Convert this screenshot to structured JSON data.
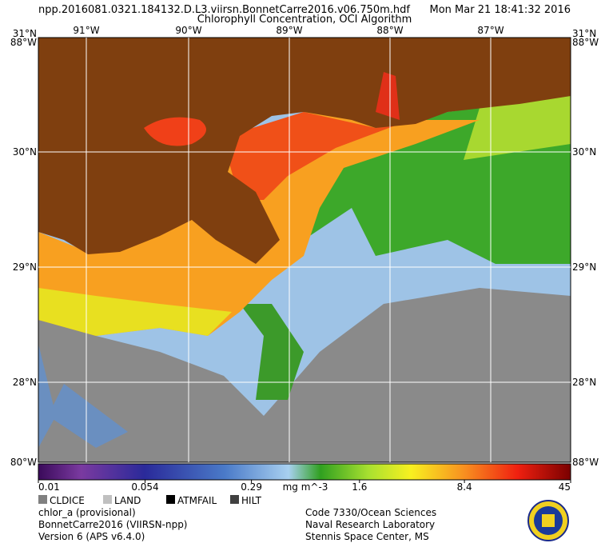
{
  "header": {
    "filename": "npp.2016081.0321.184132.D.L3.viirsn.BonnetCarre2016.v06.750m.hdf",
    "datetime": "Mon Mar 21 18:41:32 2016",
    "title": "Chlorophyll Concentration, OCI Algorithm"
  },
  "map": {
    "top_labels": [
      "91°W",
      "90°W",
      "89°W",
      "88°W",
      "87°W"
    ],
    "left_labels": [
      "30°N",
      "29°N",
      "28°N"
    ],
    "right_labels": [
      "30°N",
      "29°N",
      "28°N"
    ],
    "corner_top_left": [
      "31°N",
      "88°W"
    ],
    "corner_top_right": [
      "31°N",
      "88°W"
    ],
    "corner_bottom_left": "80°W",
    "corner_bottom_right": "88°W"
  },
  "colorbar": {
    "lim": [
      0.01,
      45
    ],
    "ticks": [
      0.01,
      0.054,
      0.29,
      1.6,
      8.4,
      45
    ],
    "unit": "mg m^-3",
    "log": true
  },
  "legend": [
    "CLDICE",
    "LAND",
    "ATMFAIL",
    "HILT"
  ],
  "footer_left": [
    "chlor_a (provisional)",
    "BonnetCarre2016 (VIIRSN-npp)",
    "Version 6 (APS v6.4.0)"
  ],
  "footer_right": [
    "Code 7330/Ocean Sciences",
    "Naval Research Laboratory",
    "Stennis Space Center, MS"
  ]
}
